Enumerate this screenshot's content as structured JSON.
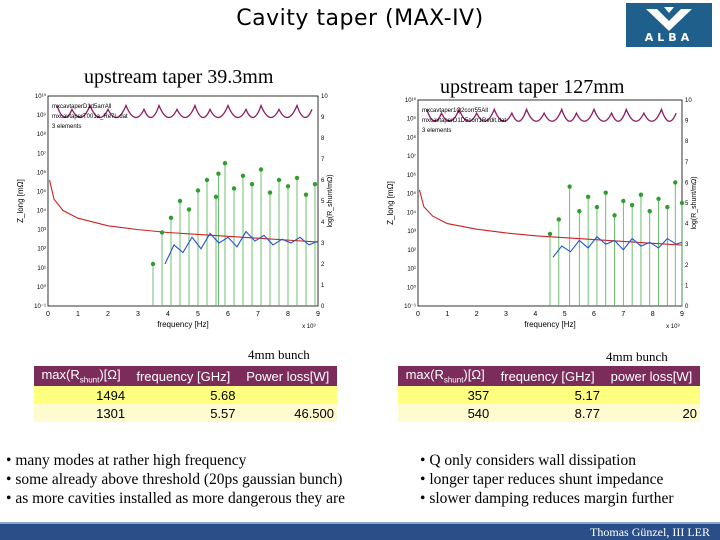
{
  "slide": {
    "title": "Cavity taper (MAX-IV)",
    "logo_text": "ALBA",
    "footer": "Thomas Günzel, III LER",
    "colors": {
      "logo": "#1f5f8b",
      "table_header": "#7b2c5b",
      "table_row": "#ffff80",
      "footer": "#2a4f88"
    }
  },
  "left": {
    "title": "upstream taper 39.3mm",
    "bunch": "4mm bunch",
    "table": {
      "headers": [
        "max(R",
        "shunt",
        ")[Ω]",
        "frequency [GHz]",
        "Power loss[W]"
      ],
      "rows": [
        [
          "1494",
          "5.68",
          ""
        ],
        [
          "1301",
          "5.57",
          "46.500"
        ]
      ]
    },
    "bullets": [
      "many modes at rather high frequency",
      "some already above threshold (20ps gaussian bunch)",
      "as more cavities installed as more dangerous they are"
    ]
  },
  "right": {
    "title": "upstream taper 127mm",
    "bunch": "4mm bunch",
    "table": {
      "headers": [
        "max(R",
        "shunt",
        ")[Ω]",
        "frequency [GHz]",
        "power loss[W]"
      ],
      "rows": [
        [
          "357",
          "5.17",
          ""
        ],
        [
          "540",
          "8.77",
          "20"
        ]
      ]
    },
    "bullets": [
      "Q only considers wall dissipation",
      "longer taper reduces shunt impedance",
      "slower damping reduces margin further"
    ]
  },
  "chart_data": [
    {
      "type": "line",
      "xlabel": "frequency [Hz]",
      "x_multiplier": "x 10⁹",
      "ylabel": "Z_long [mΩ]",
      "y2label": "log(R_shunt/mΩ)",
      "xlim": [
        0,
        9
      ],
      "ylim_log10": [
        -1,
        10
      ],
      "y2lim": [
        0,
        10
      ],
      "x_ticks": [
        "0",
        "1",
        "2",
        "3",
        "4",
        "5",
        "6",
        "7",
        "8",
        "9"
      ],
      "y_ticks": [
        "10⁻¹",
        "10⁰",
        "10¹",
        "10²",
        "10³",
        "10⁴",
        "10⁵",
        "10⁶",
        "10⁷",
        "10⁸",
        "10⁹",
        "10¹⁰"
      ],
      "y2_ticks": [
        "0",
        "1",
        "2",
        "3",
        "4",
        "5",
        "6",
        "7",
        "8",
        "9",
        "10"
      ],
      "legend": [
        "mxcavtaperD1d5arrAll",
        "mxcavtaperT001a_Re7L.dat",
        "3 elements"
      ],
      "legend_placement": "top-left",
      "series": [
        {
          "name": "mxcavtaperD1d5arrAll",
          "color": "#8b1c62",
          "x": [
            0.3,
            0.8,
            1.4,
            2.0,
            2.6,
            3.2,
            3.7,
            4.3,
            4.9,
            5.4,
            6.0,
            6.6,
            7.1,
            7.7,
            8.3,
            8.8
          ],
          "y": [
            9.5,
            9.3,
            9.5,
            9.3,
            9.5,
            9.3,
            9.5,
            9.3,
            9.5,
            9.3,
            9.5,
            9.3,
            9.5,
            9.3,
            9.5,
            9.3
          ]
        },
        {
          "name": "mxcavtaperT001a_Re7L.dat",
          "color": "#cc2222",
          "x": [
            0.05,
            0.2,
            0.5,
            1.0,
            2.0,
            3.0,
            4.0,
            5.0,
            6.0,
            7.0,
            8.0,
            9.0
          ],
          "y": [
            5.6,
            4.6,
            4.0,
            3.6,
            3.2,
            3.0,
            2.85,
            2.75,
            2.65,
            2.55,
            2.45,
            2.35
          ]
        },
        {
          "name": "3 elements",
          "color": "#2255cc",
          "x": [
            3.9,
            4.2,
            4.5,
            4.8,
            5.1,
            5.4,
            5.7,
            6.0,
            6.3,
            6.6,
            6.9,
            7.2,
            7.5,
            7.8,
            8.1,
            8.4,
            8.7,
            9.0
          ],
          "y": [
            1.2,
            2.2,
            1.8,
            2.6,
            2.0,
            2.8,
            2.3,
            2.6,
            2.1,
            2.9,
            2.4,
            2.7,
            2.2,
            2.5,
            2.3,
            2.6,
            2.2,
            2.4
          ]
        }
      ],
      "modes": {
        "x": [
          3.5,
          3.8,
          4.1,
          4.4,
          4.7,
          5.0,
          5.3,
          5.6,
          5.68,
          5.9,
          6.2,
          6.5,
          6.8,
          7.1,
          7.4,
          7.7,
          8.0,
          8.3,
          8.6,
          8.9
        ],
        "y2": [
          2.0,
          3.5,
          4.2,
          5.0,
          4.6,
          5.5,
          6.0,
          5.2,
          6.3,
          6.8,
          5.6,
          6.2,
          5.8,
          6.5,
          5.4,
          6.0,
          5.7,
          6.1,
          5.3,
          5.8
        ]
      }
    },
    {
      "type": "line",
      "xlabel": "frequency [Hz]",
      "x_multiplier": "x 10⁹",
      "ylabel": "Z_long [mΩ]",
      "y2label": "log(R_shunt/mΩ)",
      "xlim": [
        0,
        9
      ],
      "ylim_log10": [
        -1,
        10
      ],
      "y2lim": [
        0,
        10
      ],
      "x_ticks": [
        "0",
        "1",
        "2",
        "3",
        "4",
        "5",
        "6",
        "7",
        "8",
        "9"
      ],
      "y_ticks": [
        "10⁻¹",
        "10⁰",
        "10¹",
        "10²",
        "10³",
        "10⁴",
        "10⁵",
        "10⁶",
        "10⁷",
        "10⁸",
        "10⁹",
        "10¹⁰"
      ],
      "y2_ticks": [
        "0",
        "1",
        "2",
        "3",
        "4",
        "5",
        "6",
        "7",
        "8",
        "9",
        "10"
      ],
      "legend": [
        "mxcavtaper1Q2corr55All",
        "mxcavtaperD1D5corr1Redit.dat",
        "3 elements"
      ],
      "legend_placement": "top-left",
      "series": [
        {
          "name": "mxcavtaper1Q2corr55All",
          "color": "#8b1c62",
          "x": [
            0.3,
            0.8,
            1.4,
            2.0,
            2.6,
            3.2,
            3.7,
            4.3,
            4.9,
            5.4,
            6.0,
            6.6,
            7.1,
            7.7,
            8.3,
            8.8
          ],
          "y": [
            9.5,
            9.3,
            9.5,
            9.3,
            9.5,
            9.3,
            9.5,
            9.3,
            9.5,
            9.3,
            9.5,
            9.3,
            9.5,
            9.3,
            9.5,
            9.3
          ]
        },
        {
          "name": "mxcavtaperD1D5corr1Redit.dat",
          "color": "#cc2222",
          "x": [
            0.05,
            0.2,
            0.5,
            1.0,
            2.0,
            3.0,
            4.0,
            5.0,
            6.0,
            7.0,
            8.0,
            9.0
          ],
          "y": [
            5.2,
            4.3,
            3.8,
            3.4,
            3.1,
            2.9,
            2.75,
            2.65,
            2.55,
            2.45,
            2.35,
            2.25
          ]
        },
        {
          "name": "3 elements",
          "color": "#2255cc",
          "x": [
            4.6,
            4.9,
            5.2,
            5.5,
            5.8,
            6.1,
            6.4,
            6.7,
            7.0,
            7.3,
            7.6,
            7.9,
            8.2,
            8.5,
            8.8,
            9.0
          ],
          "y": [
            1.6,
            2.2,
            1.9,
            2.5,
            2.1,
            2.7,
            2.3,
            2.5,
            2.0,
            2.6,
            2.2,
            2.4,
            2.1,
            2.6,
            2.3,
            2.4
          ]
        }
      ],
      "modes": {
        "x": [
          4.5,
          4.8,
          5.17,
          5.5,
          5.8,
          6.1,
          6.4,
          6.7,
          7.0,
          7.3,
          7.6,
          7.9,
          8.2,
          8.5,
          8.77,
          9.0
        ],
        "y2": [
          3.5,
          4.2,
          5.8,
          4.6,
          5.3,
          4.8,
          5.5,
          4.4,
          5.1,
          4.9,
          5.4,
          4.6,
          5.2,
          4.8,
          6.0,
          5.0
        ]
      }
    }
  ]
}
